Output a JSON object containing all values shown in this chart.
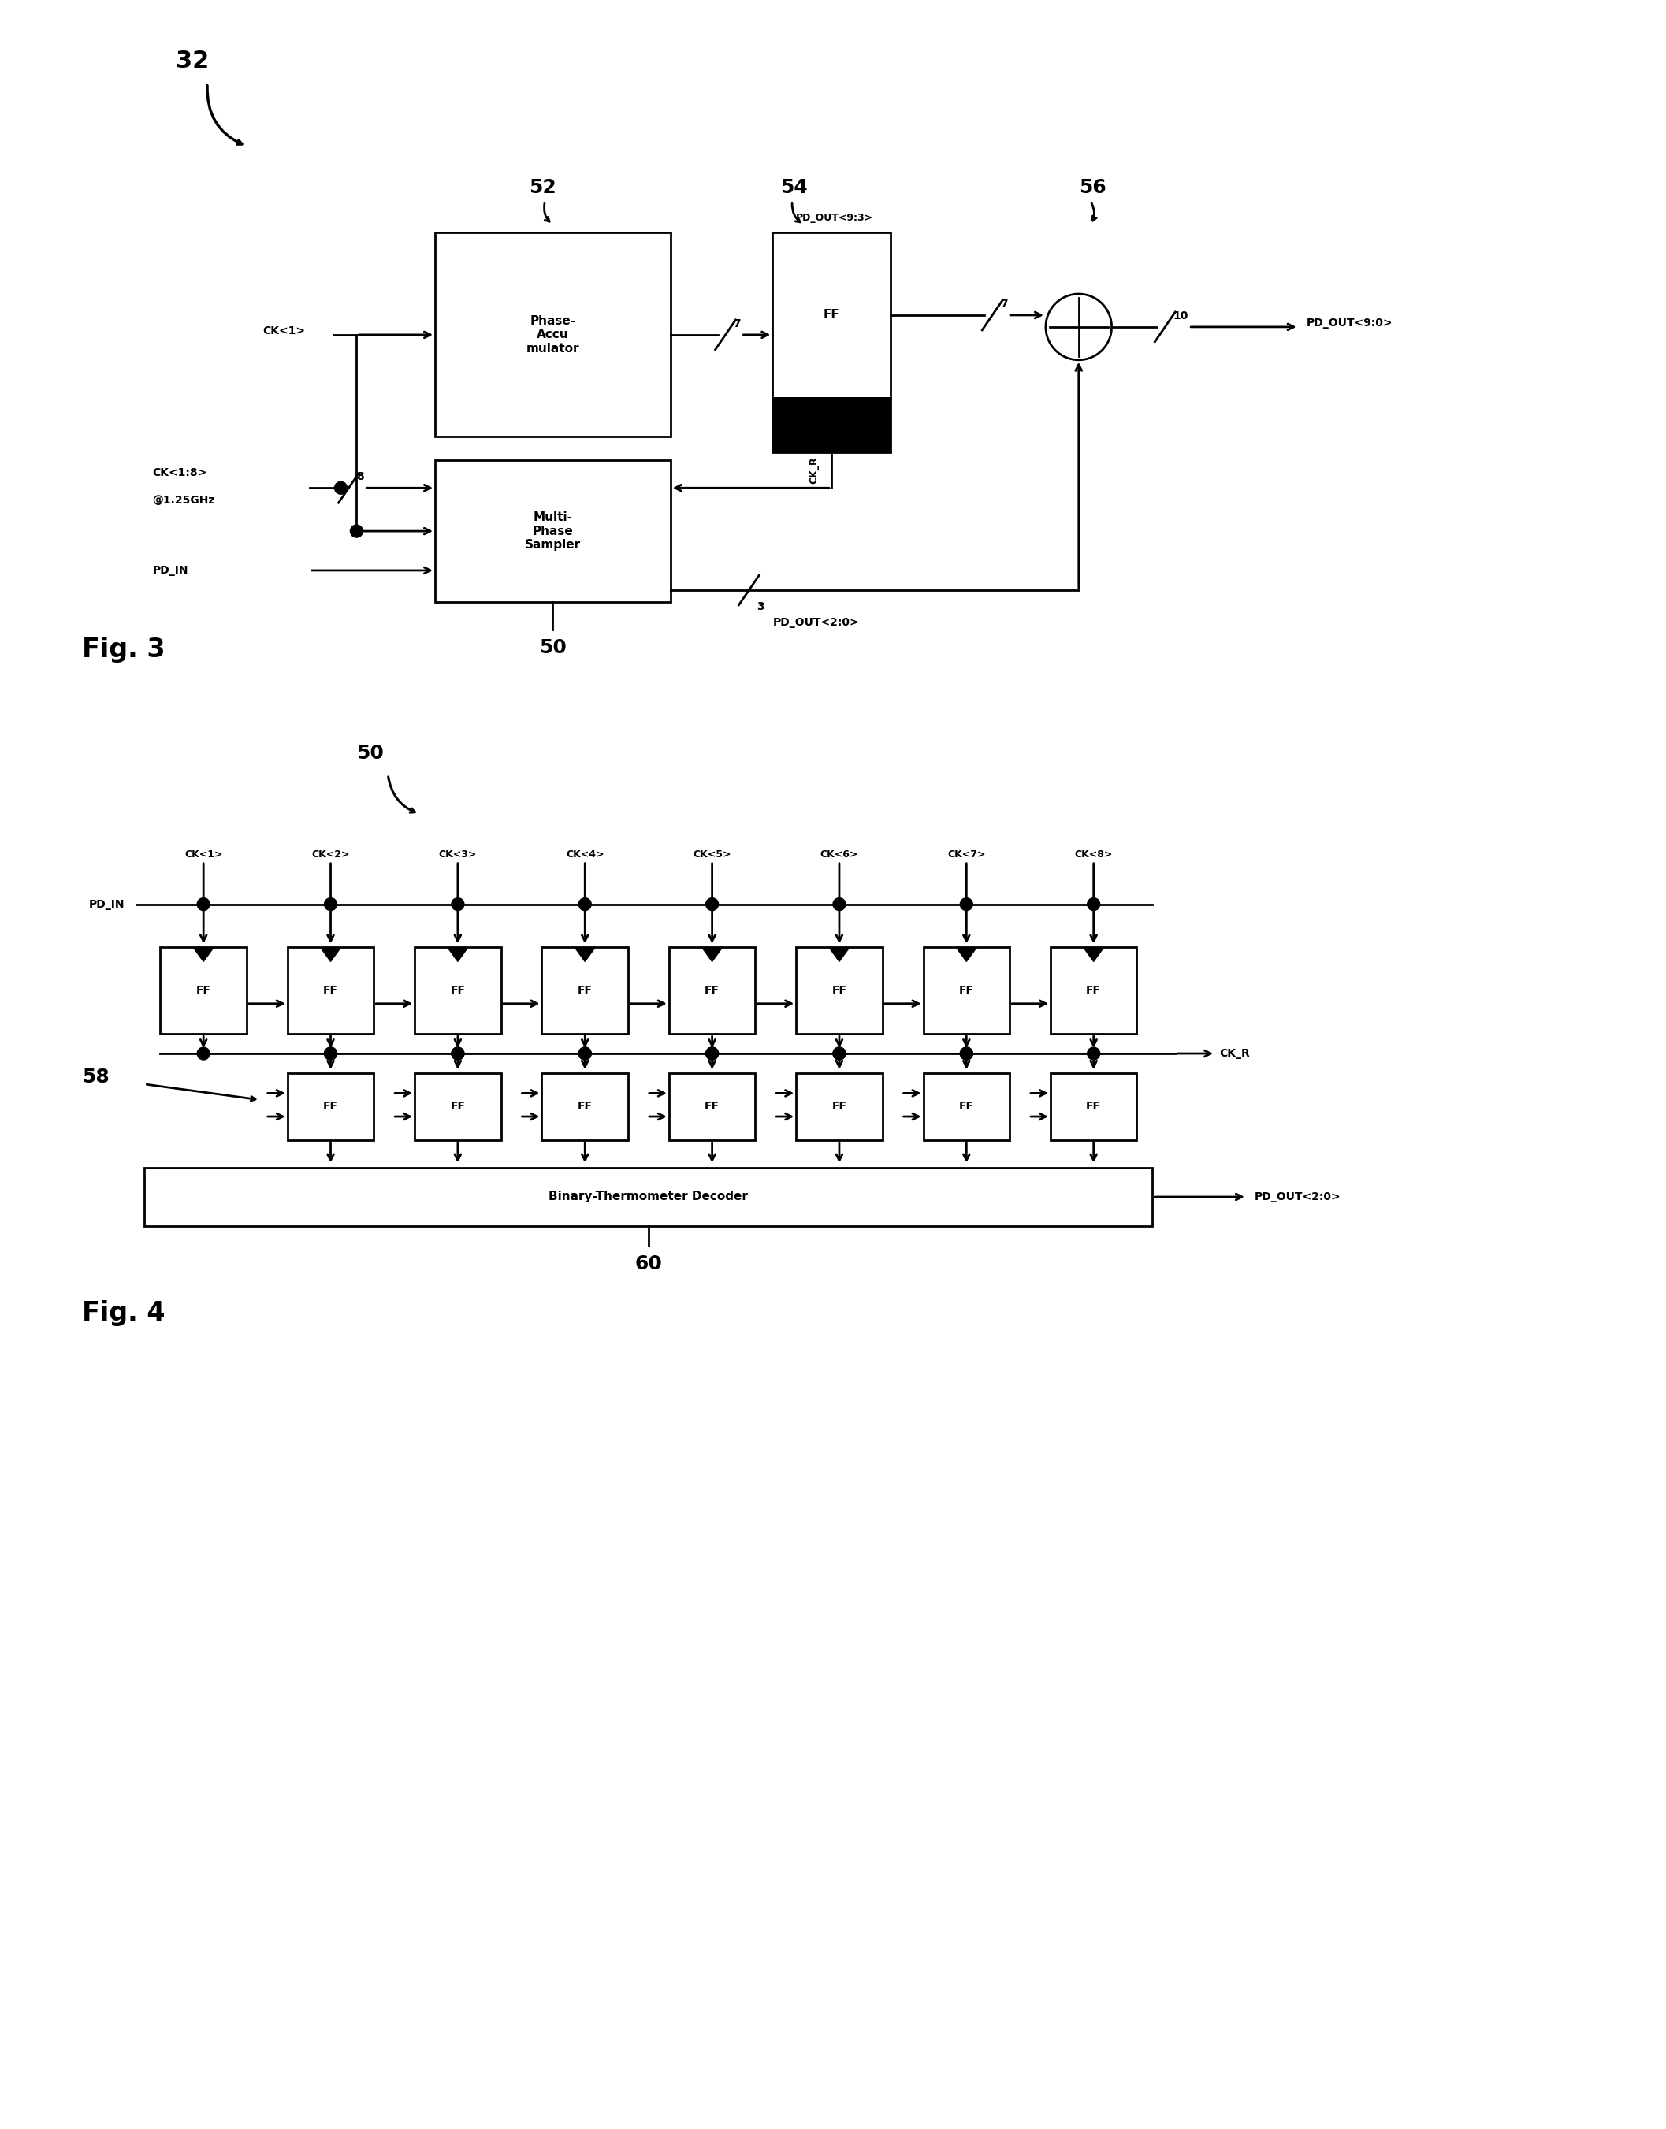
{
  "fig_width": 21.14,
  "fig_height": 27.02,
  "bg_color": "#ffffff",
  "fig3_label": "Fig. 3",
  "fig4_label": "Fig. 4",
  "ref32": "32",
  "ref50_top": "50",
  "ref52": "52",
  "ref54": "54",
  "ref56": "56",
  "ref50_bot": "50",
  "ref58": "58",
  "ref60": "60",
  "block_phase_acc": "Phase-\nAccu\nmulator",
  "block_ff": "FF",
  "block_multi_phase": "Multi-\nPhase\nSampler",
  "block_decoder": "Binary-Thermometer Decoder",
  "label_ck1_top": "CK<1>",
  "label_ck18_line1": "CK<1:8>",
  "label_ck18_line2": "@1.25GHz",
  "label_pd_in_top": "PD_IN",
  "label_pd_out_93": "PD_OUT<9:3>",
  "label_pd_out_90": "PD_OUT<9:0>",
  "label_pd_out_20_top": "PD_OUT<2:0>",
  "label_ck_r": "CK_R",
  "label_7a": "7",
  "label_7b": "7",
  "label_10": "10",
  "label_8": "8",
  "label_3": "3",
  "ck_labels": [
    "CK<1>",
    "CK<2>",
    "CK<3>",
    "CK<4>",
    "CK<5>",
    "CK<6>",
    "CK<7>",
    "CK<8>"
  ],
  "label_pd_in_bot": "PD_IN",
  "label_ck_r_bot": "CK_R",
  "label_pd_out_20_bot": "PD_OUT<2:0>"
}
